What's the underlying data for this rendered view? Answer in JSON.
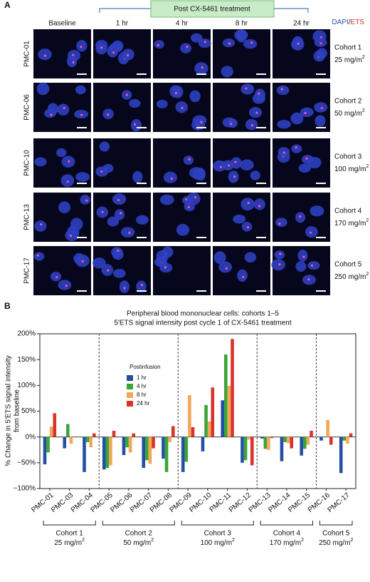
{
  "panel_a": {
    "label": "A",
    "treatment": "Post CX-5461 treatment",
    "stain_1": "DAPI",
    "stain_sep": "/",
    "stain_2": "ETS",
    "columns": [
      "Baseline",
      "1 hr",
      "4 hr",
      "8 hr",
      "24 hr"
    ],
    "rows": [
      "PMC-01",
      "PMC-06",
      "PMC-10",
      "PMC-13",
      "PMC-17"
    ],
    "cohorts": [
      {
        "name": "Cohort 1",
        "dose": "25 mg/m",
        "dose_sup": "2"
      },
      {
        "name": "Cohort 2",
        "dose": "50 mg/m",
        "dose_sup": "2"
      },
      {
        "name": "Cohort 3",
        "dose": "100 mg/m",
        "dose_sup": "2"
      },
      {
        "name": "Cohort 4",
        "dose": "170 mg/m",
        "dose_sup": "2"
      },
      {
        "name": "Cohort 5",
        "dose": "250 mg/m",
        "dose_sup": "2"
      }
    ]
  },
  "chart_data": {
    "type": "bar",
    "panel_label": "B",
    "title": "Peripheral blood mononuclear cells: cohorts 1–5",
    "subtitle": "5′ETS signal intensity post cycle 1 of CX-5461 treatment",
    "y_label": "% Change in 5′ETS signal intensity",
    "y_label_2": "from baseline",
    "categories": [
      "PMC-01",
      "PMC-03",
      "PMC-04",
      "PMC-05",
      "PMC-06",
      "PMC-07",
      "PMC-08",
      "PMC-09",
      "PMC-10",
      "PMC-11",
      "PMC-12",
      "PMC-13",
      "PMC-14",
      "PMC-15",
      "PMC-16",
      "PMC-17"
    ],
    "groups": [
      {
        "name": "Cohort 1",
        "dose": "25 mg/m",
        "dose_sup": "2",
        "size": 3
      },
      {
        "name": "Cohort 2",
        "dose": "50 mg/m",
        "dose_sup": "2",
        "size": 4
      },
      {
        "name": "Cohort 3",
        "dose": "100 mg/m",
        "dose_sup": "2",
        "size": 4
      },
      {
        "name": "Cohort 4",
        "dose": "170 mg/m",
        "dose_sup": "2",
        "size": 3
      },
      {
        "name": "Cohort 5",
        "dose": "250 mg/m",
        "dose_sup": "2",
        "size": 2
      }
    ],
    "legend_title": "Postinfusion",
    "series": [
      {
        "name": "1 hr",
        "color": "#2450a4",
        "values": [
          -53,
          -22,
          -68,
          -63,
          -35,
          -60,
          -42,
          -68,
          -28,
          71,
          -50,
          -3,
          -47,
          -36,
          -7,
          -70
        ]
      },
      {
        "name": "4 hr",
        "color": "#3aa536",
        "values": [
          -30,
          25,
          -10,
          -60,
          -20,
          -45,
          -68,
          -48,
          62,
          160,
          -45,
          -23,
          -10,
          -23,
          0,
          -7
        ]
      },
      {
        "name": "8 hr",
        "color": "#f0a858",
        "values": [
          20,
          -13,
          -20,
          -55,
          -30,
          -52,
          -10,
          81,
          30,
          99,
          -5,
          -25,
          -12,
          -15,
          33,
          -13
        ]
      },
      {
        "name": "24 hr",
        "color": "#d9342b",
        "values": [
          46,
          0,
          7,
          12,
          7,
          -22,
          21,
          19,
          96,
          190,
          -55,
          -2,
          -22,
          12,
          -15,
          7
        ]
      }
    ],
    "ylim": [
      -100,
      200
    ],
    "yticks": [
      {
        "value": -100,
        "label": "−100%"
      },
      {
        "value": -50,
        "label": "−50%"
      },
      {
        "value": 0,
        "label": "0%"
      },
      {
        "value": 50,
        "label": "50%"
      },
      {
        "value": 100,
        "label": "100%"
      },
      {
        "value": 150,
        "label": "150%"
      },
      {
        "value": 200,
        "label": "200%"
      }
    ]
  }
}
